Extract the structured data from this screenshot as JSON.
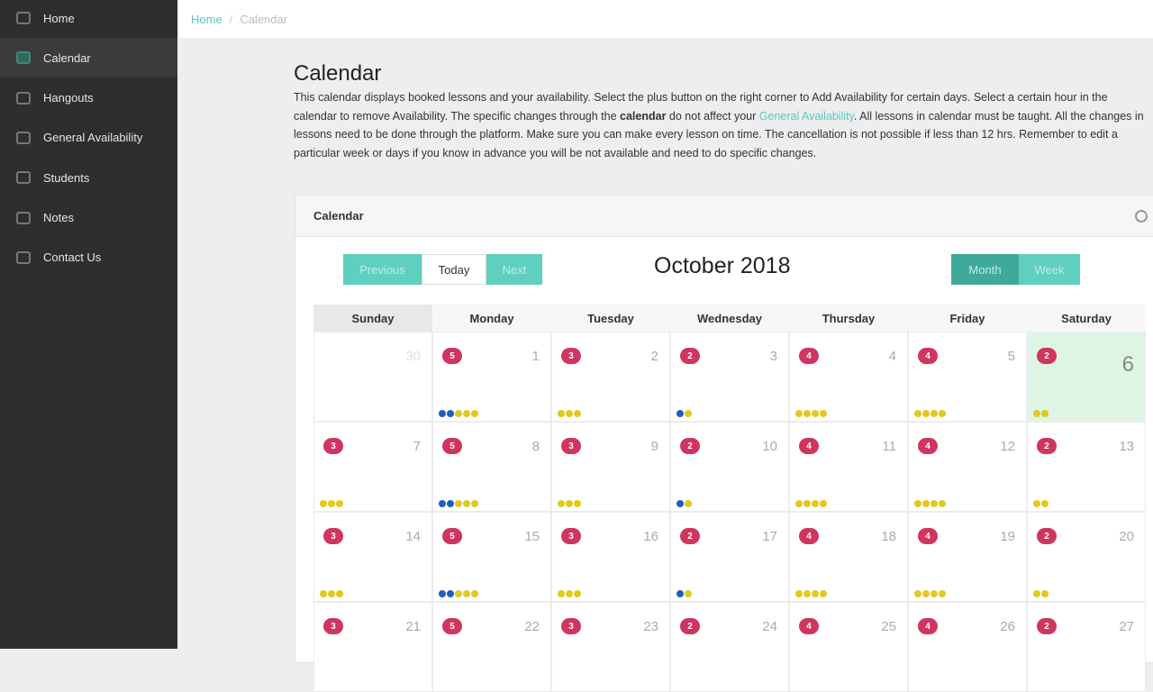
{
  "sidebar": {
    "items": [
      {
        "label": "Home",
        "icon": "home-icon"
      },
      {
        "label": "Calendar",
        "icon": "calendar-icon",
        "active": true
      },
      {
        "label": "Hangouts",
        "icon": "hangouts-icon"
      },
      {
        "label": "General Availability",
        "icon": "availability-icon"
      },
      {
        "label": "Students",
        "icon": "students-icon"
      },
      {
        "label": "Notes",
        "icon": "notes-icon"
      },
      {
        "label": "Contact Us",
        "icon": "contact-icon"
      }
    ]
  },
  "breadcrumb": {
    "home": "Home",
    "sep": "/",
    "current": "Calendar"
  },
  "page": {
    "title": "Calendar",
    "desc_1": "This calendar displays booked lessons and your availability. Select the plus button on the right corner to Add Availability for certain days. Select a certain hour in the calendar to remove Availability. The specific changes through the ",
    "desc_bold": "calendar",
    "desc_2": " do not affect your ",
    "desc_link": "General Availability",
    "desc_3": ". All lessons in calendar must be taught. All the changes in lessons need to be done through the platform. Make sure you can make every lesson on time. The cancellation is not possible if less than 12 hrs. Remember to edit a particular week or days if you know in advance you will be not available and need to do specific changes."
  },
  "card": {
    "title": "Calendar",
    "buttons": {
      "prev": "Previous",
      "today": "Today",
      "next": "Next",
      "month": "Month",
      "week": "Week"
    },
    "month_title": "October 2018"
  },
  "colors": {
    "accent": "#5fcfbf",
    "badge": "#d0355f",
    "dot_blue": "#1f5fbf",
    "dot_yellow": "#e3c81e"
  },
  "calendar": {
    "weekdays": [
      "Sunday",
      "Monday",
      "Tuesday",
      "Wednesday",
      "Thursday",
      "Friday",
      "Saturday"
    ],
    "weeks": [
      [
        {
          "day": "30",
          "badge": null,
          "blue": 0,
          "yellow": 0
        },
        {
          "day": "1",
          "badge": "5",
          "blue": 2,
          "yellow": 3
        },
        {
          "day": "2",
          "badge": "3",
          "blue": 0,
          "yellow": 3
        },
        {
          "day": "3",
          "badge": "2",
          "blue": 1,
          "yellow": 1
        },
        {
          "day": "4",
          "badge": "4",
          "blue": 0,
          "yellow": 4
        },
        {
          "day": "5",
          "badge": "4",
          "blue": 0,
          "yellow": 4
        },
        {
          "day": "6",
          "badge": "2",
          "blue": 0,
          "yellow": 2,
          "today": true
        }
      ],
      [
        {
          "day": "7",
          "badge": "3",
          "blue": 0,
          "yellow": 3
        },
        {
          "day": "8",
          "badge": "5",
          "blue": 2,
          "yellow": 3
        },
        {
          "day": "9",
          "badge": "3",
          "blue": 0,
          "yellow": 3
        },
        {
          "day": "10",
          "badge": "2",
          "blue": 1,
          "yellow": 1
        },
        {
          "day": "11",
          "badge": "4",
          "blue": 0,
          "yellow": 4
        },
        {
          "day": "12",
          "badge": "4",
          "blue": 0,
          "yellow": 4
        },
        {
          "day": "13",
          "badge": "2",
          "blue": 0,
          "yellow": 2
        }
      ],
      [
        {
          "day": "14",
          "badge": "3",
          "blue": 0,
          "yellow": 3
        },
        {
          "day": "15",
          "badge": "5",
          "blue": 2,
          "yellow": 3
        },
        {
          "day": "16",
          "badge": "3",
          "blue": 0,
          "yellow": 3
        },
        {
          "day": "17",
          "badge": "2",
          "blue": 1,
          "yellow": 1
        },
        {
          "day": "18",
          "badge": "4",
          "blue": 0,
          "yellow": 4
        },
        {
          "day": "19",
          "badge": "4",
          "blue": 0,
          "yellow": 4
        },
        {
          "day": "20",
          "badge": "2",
          "blue": 0,
          "yellow": 2
        }
      ],
      [
        {
          "day": "21",
          "badge": "3",
          "blue": 0,
          "yellow": 0
        },
        {
          "day": "22",
          "badge": "5",
          "blue": 0,
          "yellow": 0
        },
        {
          "day": "23",
          "badge": "3",
          "blue": 0,
          "yellow": 0
        },
        {
          "day": "24",
          "badge": "2",
          "blue": 0,
          "yellow": 0
        },
        {
          "day": "25",
          "badge": "4",
          "blue": 0,
          "yellow": 0
        },
        {
          "day": "26",
          "badge": "4",
          "blue": 0,
          "yellow": 0
        },
        {
          "day": "27",
          "badge": "2",
          "blue": 0,
          "yellow": 0
        }
      ]
    ]
  }
}
